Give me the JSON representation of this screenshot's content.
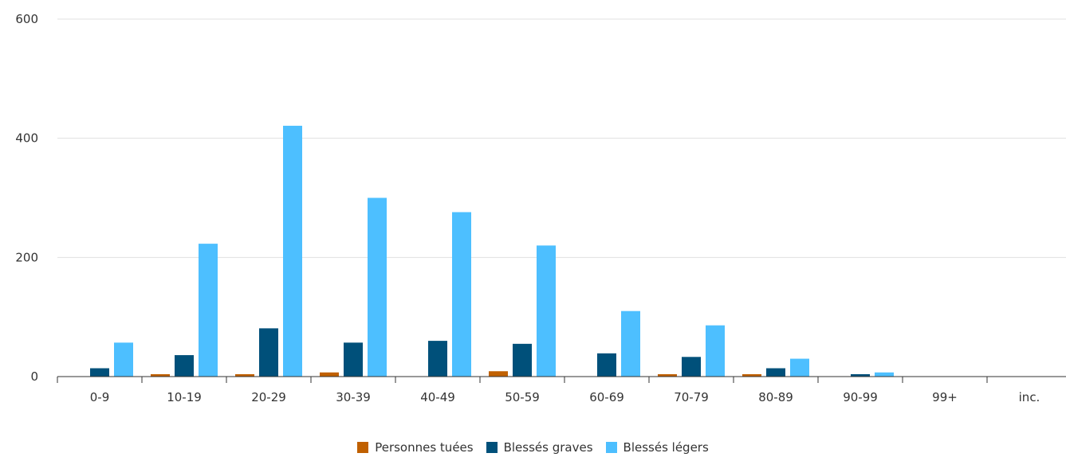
{
  "chart_data": {
    "type": "bar",
    "title": "",
    "xlabel": "",
    "ylabel": "",
    "categories": [
      "0-9",
      "10-19",
      "20-29",
      "30-39",
      "40-49",
      "50-59",
      "60-69",
      "70-79",
      "80-89",
      "90-99",
      "99+",
      "inc."
    ],
    "series": [
      {
        "name": "Personnes tuées",
        "color": "#c06000",
        "values": [
          0,
          4,
          4,
          7,
          0,
          9,
          0,
          4,
          4,
          0,
          0,
          0
        ]
      },
      {
        "name": "Blessés graves",
        "color": "#00507a",
        "values": [
          14,
          36,
          81,
          57,
          60,
          55,
          39,
          33,
          14,
          4,
          0,
          0
        ]
      },
      {
        "name": "Blessés légers",
        "color": "#4dbfff",
        "values": [
          57,
          223,
          421,
          300,
          276,
          220,
          110,
          86,
          30,
          7,
          0,
          0
        ]
      }
    ],
    "yticks": [
      "0",
      "200",
      "400",
      "600"
    ],
    "ylim": [
      0,
      600
    ],
    "grid": true,
    "legend_position": "bottom"
  }
}
